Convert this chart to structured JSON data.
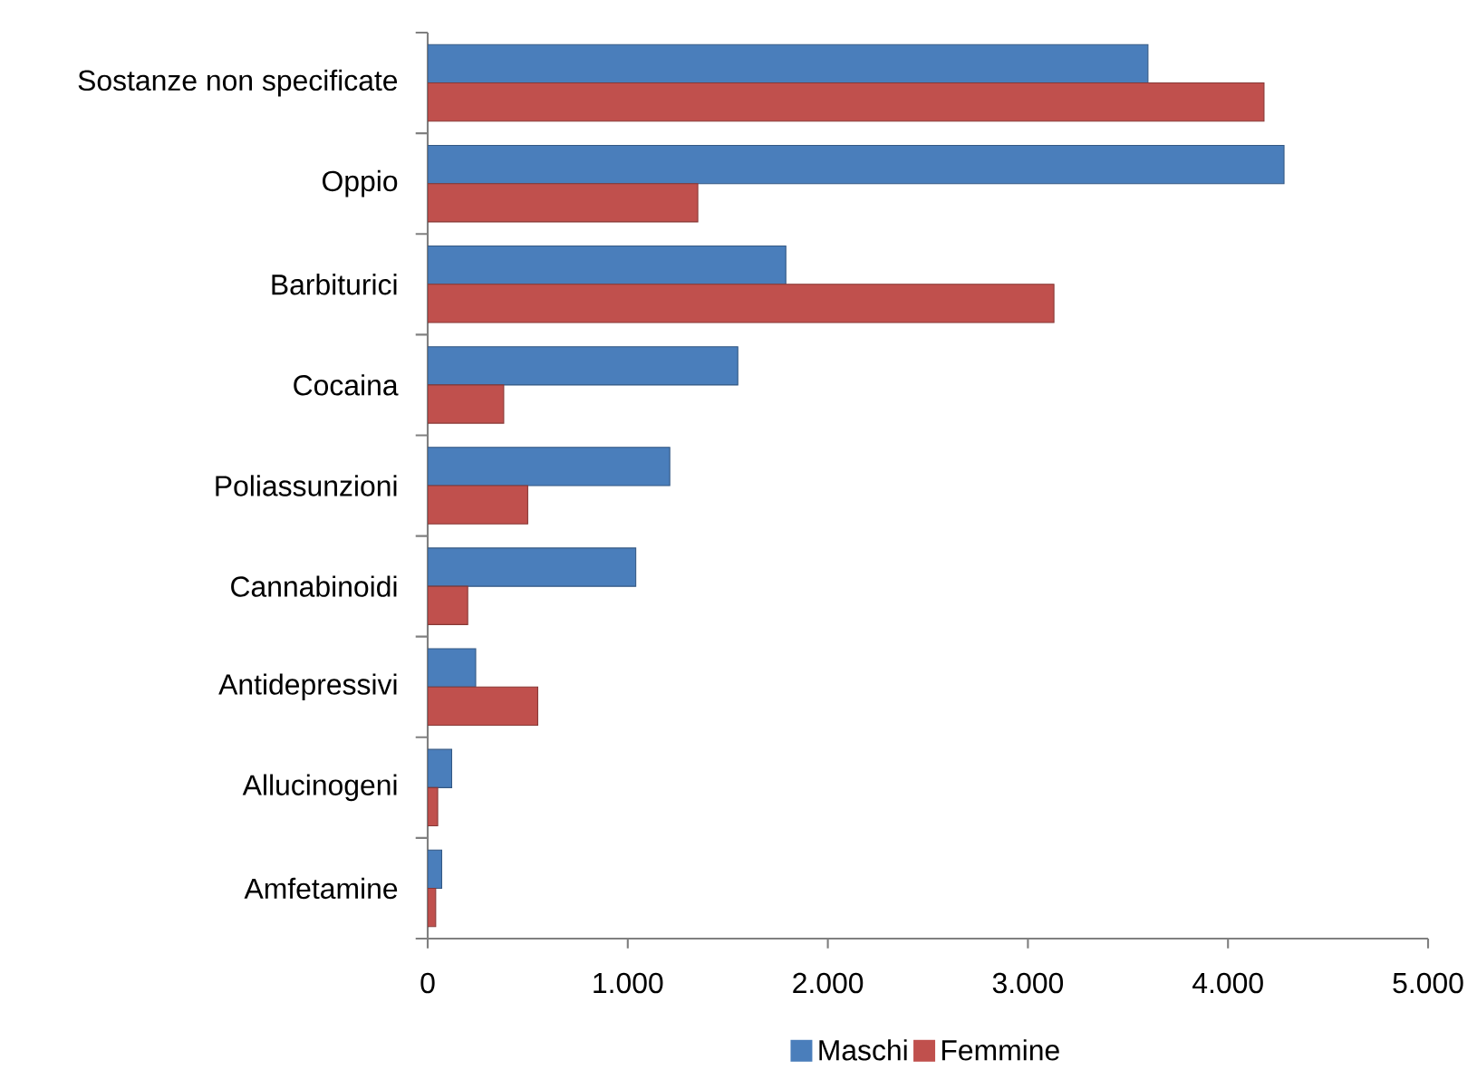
{
  "chart_data": {
    "type": "bar",
    "orientation": "horizontal",
    "categories": [
      "Sostanze non specificate",
      "Oppio",
      "Barbiturici",
      "Cocaina",
      "Poliassunzioni",
      "Cannabinoidi",
      "Antidepressivi",
      "Allucinogeni",
      "Amfetamine"
    ],
    "series": [
      {
        "name": "Maschi",
        "color": "#4a7ebb",
        "values": [
          3600,
          4280,
          1790,
          1550,
          1210,
          1040,
          240,
          120,
          70
        ]
      },
      {
        "name": "Femmine",
        "color": "#c0504d",
        "values": [
          4180,
          1350,
          3130,
          380,
          500,
          200,
          550,
          50,
          40
        ]
      }
    ],
    "xlim": [
      0,
      5000
    ],
    "xticks": [
      0,
      {
        "value": 1000,
        "label": "1.000"
      },
      {
        "value": 2000,
        "label": "2.000"
      },
      {
        "value": 3000,
        "label": "3.000"
      },
      {
        "value": 4000,
        "label": "4.000"
      },
      {
        "value": 5000,
        "label": "5.000"
      }
    ],
    "legend": "bottom",
    "grid": false
  }
}
